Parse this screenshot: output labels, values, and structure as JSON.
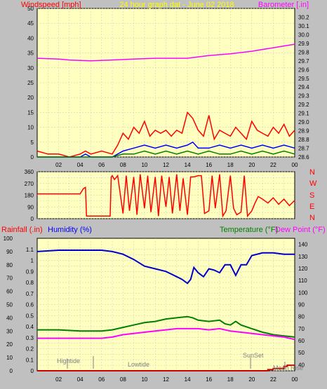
{
  "header": {
    "left_title": "Windspeed [mph]",
    "center_title": "24 hour graph dat - June 02 2018",
    "right_title": "Barometer [.in]"
  },
  "bottom_header": {
    "rain_label": "Rainfall (.in)",
    "humidity_label": "Humidity (%)",
    "temperature_label": "Temperature (°F)",
    "dewpoint_label": "Dew Point (°F)"
  },
  "compass": [
    "N",
    "W",
    "S",
    "E",
    "N"
  ],
  "events": {
    "hightide": "Hightide",
    "lowtide": "Lowtide",
    "sunset": "SunSet",
    "moonrise": "Moon Rise"
  },
  "colors": {
    "panel_bg": "#ffffc0",
    "grid": "#c8c8c8",
    "wind_gust": "#ff0000",
    "wind_avg": "#0000ff",
    "wind_low": "#008000",
    "barometer": "#ff00ff",
    "direction": "#ff0000",
    "humidity": "#0000cc",
    "temperature": "#008000",
    "dewpoint": "#ff00ff",
    "rainfall": "#cc0000",
    "left_title": "#ff0000",
    "center_title": "#ffff00",
    "right_title": "#ff00ff",
    "humidity_title": "#0000ff",
    "temperature_title": "#008000"
  },
  "chart_data": [
    {
      "type": "area",
      "id": "wind",
      "x_tick_labels": [
        "02",
        "04",
        "06",
        "08",
        "10",
        "12",
        "14",
        "16",
        "18",
        "20",
        "22",
        "00"
      ],
      "ylim": [
        0,
        50
      ],
      "y_ticks": [
        0,
        5,
        10,
        15,
        20,
        25,
        30,
        35,
        40,
        45,
        50
      ],
      "series": [
        {
          "name": "gust",
          "hours": [
            0,
            1,
            2,
            3,
            4,
            4.5,
            5,
            6,
            7,
            7.5,
            8,
            8.5,
            9,
            9.5,
            10,
            10.5,
            11,
            11.5,
            12,
            12.5,
            13,
            13.5,
            14,
            14.5,
            15,
            15.5,
            16,
            16.5,
            17,
            17.5,
            18,
            18.5,
            19,
            19.5,
            20,
            20.5,
            21,
            21.5,
            22,
            22.5,
            23,
            23.5,
            24
          ],
          "values": [
            2,
            1,
            1,
            0,
            1,
            2,
            1,
            2,
            1,
            4,
            8,
            6,
            10,
            8,
            12,
            7,
            9,
            8,
            9,
            7,
            9,
            8,
            15,
            13,
            9,
            7,
            14,
            6,
            9,
            8,
            7,
            10,
            8,
            6,
            12,
            9,
            8,
            7,
            10,
            8,
            11,
            7,
            9
          ]
        },
        {
          "name": "avg",
          "hours": [
            0,
            2,
            4,
            4.5,
            5,
            6,
            7,
            7.5,
            8,
            9,
            10,
            11,
            12,
            13,
            14,
            14.5,
            15,
            16,
            17,
            18,
            19,
            20,
            21,
            22,
            23,
            24
          ],
          "values": [
            0,
            0,
            0,
            1,
            0,
            0,
            0,
            1,
            2,
            3,
            4,
            3,
            4,
            3,
            4,
            5,
            3,
            3,
            4,
            3,
            4,
            3,
            4,
            3,
            4,
            3
          ]
        },
        {
          "name": "low",
          "hours": [
            0,
            7,
            8,
            9,
            10,
            11,
            12,
            13,
            14,
            15,
            16,
            17,
            18,
            19,
            20,
            21,
            22,
            23,
            24
          ],
          "values": [
            0,
            0,
            1,
            1,
            2,
            1,
            2,
            1,
            2,
            1,
            2,
            1,
            1,
            2,
            1,
            2,
            1,
            2,
            1
          ]
        }
      ]
    },
    {
      "type": "line",
      "id": "barometer",
      "ylim": [
        28.6,
        30.3
      ],
      "y_ticks": [
        28.6,
        28.7,
        28.8,
        28.9,
        29.0,
        29.1,
        29.2,
        29.3,
        29.4,
        29.5,
        29.6,
        29.7,
        29.8,
        29.9,
        30.0,
        30.1,
        30.2
      ],
      "series": [
        {
          "name": "barometer",
          "hours": [
            0,
            2,
            3,
            5,
            7,
            9,
            11,
            13,
            14,
            16,
            18,
            20,
            22,
            23.5,
            24
          ],
          "values": [
            29.73,
            29.72,
            29.71,
            29.7,
            29.71,
            29.72,
            29.73,
            29.73,
            29.73,
            29.76,
            29.78,
            29.81,
            29.85,
            29.88,
            29.89
          ]
        }
      ]
    },
    {
      "type": "line",
      "id": "direction",
      "ylim": [
        0,
        360
      ],
      "y_ticks": [
        0,
        45,
        90,
        135,
        180,
        225,
        270,
        315,
        360
      ],
      "y_tick_labels": [
        0,
        90,
        180,
        270,
        360
      ],
      "series": [
        {
          "name": "direction",
          "hours": [
            0,
            4,
            4.3,
            4.5,
            4.6,
            6.8,
            6.9,
            7.0,
            7.2,
            7.5,
            8,
            8.3,
            8.6,
            9,
            9.3,
            9.6,
            10,
            10.3,
            10.6,
            11,
            11.3,
            11.6,
            12,
            12.3,
            12.6,
            13,
            13.3,
            13.6,
            14,
            14.3,
            14.6,
            15,
            15.3,
            15.6,
            16,
            16.3,
            16.6,
            17,
            17.3,
            17.6,
            18,
            18.3,
            18.6,
            19,
            19.3,
            19.6,
            20,
            20.3,
            20.6,
            21,
            21.5,
            22,
            22.5,
            23,
            23.5,
            24
          ],
          "values": [
            190,
            190,
            230,
            240,
            20,
            20,
            320,
            330,
            300,
            330,
            40,
            330,
            60,
            320,
            30,
            340,
            80,
            330,
            50,
            320,
            20,
            330,
            90,
            320,
            40,
            340,
            60,
            310,
            30,
            320,
            320,
            330,
            330,
            40,
            60,
            330,
            80,
            340,
            20,
            60,
            330,
            80,
            30,
            50,
            330,
            20,
            60,
            120,
            170,
            150,
            120,
            160,
            110,
            150,
            100,
            140
          ]
        }
      ]
    },
    {
      "type": "line",
      "id": "humidity-temp",
      "humidity_ylim": [
        0,
        100
      ],
      "humidity_ticks": [
        0,
        10,
        20,
        30,
        40,
        50,
        60,
        70,
        80,
        90,
        100
      ],
      "rain_ylim": [
        0,
        1.2
      ],
      "rain_ticks": [
        0,
        0.05,
        0.1,
        0.15,
        0.2,
        0.25,
        0.3,
        0.35,
        0.4,
        0.45,
        0.5,
        0.55,
        0.6,
        0.65,
        0.7,
        0.75,
        0.8,
        0.85,
        0.9,
        0.95,
        1,
        1.05,
        1.1
      ],
      "rain_tick_labels": [
        0,
        0.1,
        0.2,
        0.3,
        0.4,
        0.5,
        0.6,
        0.7,
        0.8,
        0.9,
        1,
        1.1
      ],
      "temp_ylim": [
        35,
        145
      ],
      "temp_ticks": [
        40,
        45,
        50,
        55,
        60,
        65,
        70,
        75,
        80,
        85,
        90,
        95,
        100,
        105,
        110,
        115,
        120,
        125,
        130,
        135,
        140
      ],
      "temp_tick_labels": [
        40,
        50,
        60,
        70,
        80,
        90,
        100,
        110,
        120,
        130,
        140
      ],
      "x_tick_labels": [
        "02",
        "04",
        "06",
        "08",
        "10",
        "12",
        "14",
        "16",
        "18",
        "20",
        "22",
        "00"
      ],
      "series": [
        {
          "name": "humidity",
          "hours": [
            0,
            2,
            4,
            6,
            7,
            8,
            9,
            10,
            11,
            12,
            12.5,
            13,
            13.5,
            14,
            14.3,
            14.6,
            15,
            15.5,
            16,
            16.5,
            17,
            17.5,
            18,
            18.5,
            19,
            19.5,
            20,
            21,
            22,
            23,
            24
          ],
          "values": [
            90,
            91,
            91,
            91,
            90,
            88,
            84,
            79,
            77,
            75,
            73,
            71,
            69,
            66,
            69,
            78,
            74,
            71,
            77,
            76,
            74,
            80,
            80,
            72,
            80,
            80,
            87,
            89,
            89,
            88,
            88
          ]
        },
        {
          "name": "temperature",
          "hours": [
            0,
            2,
            4,
            6,
            7,
            8,
            9,
            10,
            11,
            12,
            13,
            14,
            14.5,
            15,
            16,
            17,
            17.5,
            18,
            18.5,
            19,
            20,
            21,
            22,
            23,
            24
          ],
          "values": [
            69,
            69,
            68,
            68,
            69,
            71,
            73,
            75,
            76,
            78,
            79,
            80,
            79,
            77,
            76,
            77,
            74,
            73,
            76,
            73,
            70,
            67,
            65,
            64,
            63
          ]
        },
        {
          "name": "dewpoint",
          "hours": [
            0,
            2,
            4,
            6,
            7,
            8,
            9,
            10,
            11,
            12,
            13,
            14,
            15,
            16,
            17,
            18,
            19,
            20,
            21,
            22,
            23,
            24
          ],
          "values": [
            62,
            62,
            62,
            62,
            63,
            65,
            66,
            67,
            68,
            69,
            70,
            70,
            70,
            69,
            70,
            68,
            67,
            66,
            65,
            64,
            63,
            61
          ]
        },
        {
          "name": "rainfall",
          "hours": [
            0,
            21,
            21.5,
            22,
            22.5,
            23,
            23.3,
            24
          ],
          "values": [
            0,
            0,
            0.01,
            0.02,
            0.02,
            0.04,
            0.05,
            0.05
          ]
        }
      ]
    }
  ]
}
